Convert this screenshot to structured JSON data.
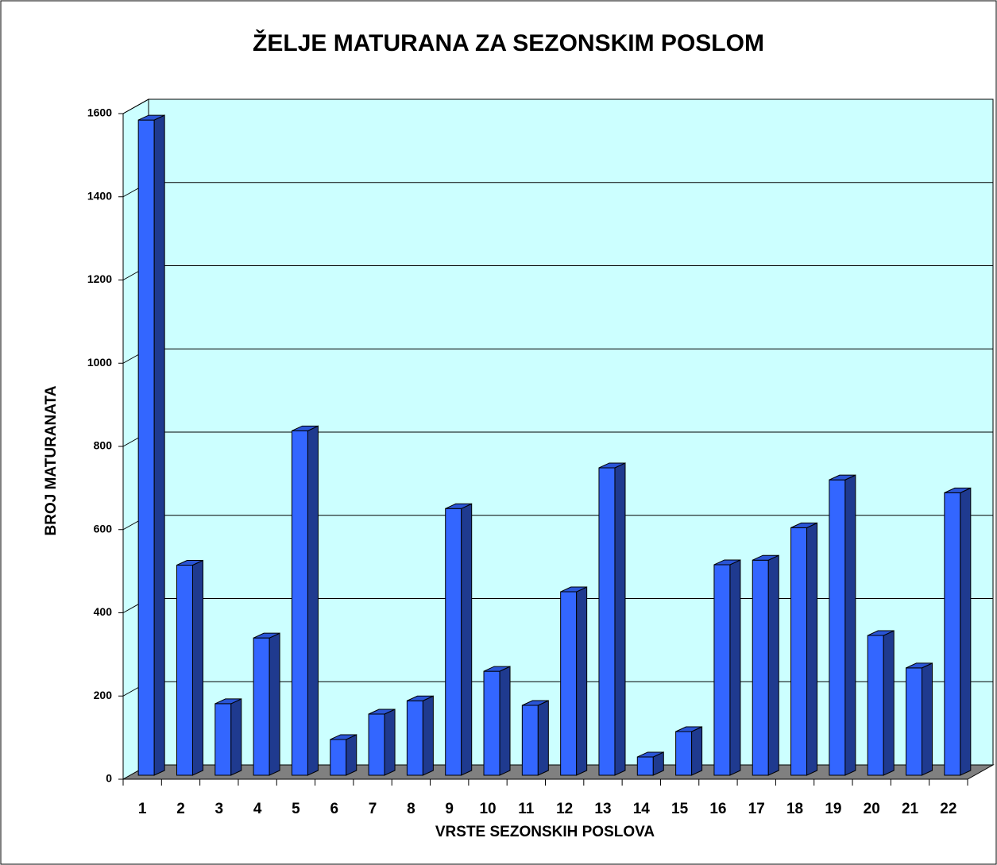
{
  "chart_data": {
    "type": "bar3d",
    "title": "ŽELJE MATURANA ZA SEZONSKIM POSLOM",
    "x_label": "VRSTE SEZONSKIH POSLOVA",
    "y_label": "BROJ MATURANATA",
    "categories": [
      "1",
      "2",
      "3",
      "4",
      "5",
      "6",
      "7",
      "8",
      "9",
      "10",
      "11",
      "12",
      "13",
      "14",
      "15",
      "16",
      "17",
      "18",
      "19",
      "20",
      "21",
      "22"
    ],
    "values": [
      1575,
      505,
      172,
      330,
      828,
      86,
      147,
      179,
      641,
      250,
      168,
      441,
      739,
      44,
      105,
      506,
      517,
      595,
      710,
      336,
      258,
      679
    ],
    "color": "#3366ff",
    "wall_color": "#ccffff",
    "floor_color": "#808080",
    "ylim": [
      0,
      1600
    ],
    "yticks": [
      0,
      200,
      400,
      600,
      800,
      1000,
      1200,
      1400,
      1600
    ],
    "grid": true
  }
}
